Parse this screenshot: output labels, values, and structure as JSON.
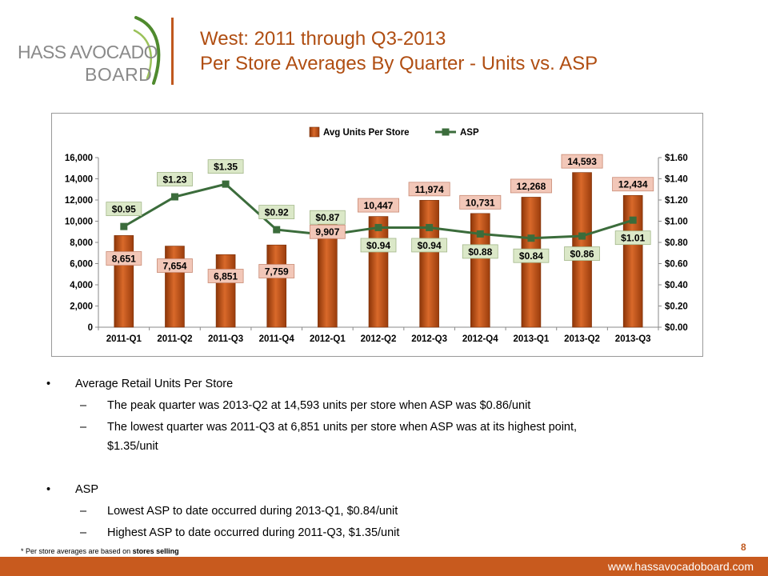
{
  "logo": {
    "line1": "HASS AVOCADO",
    "line2": "BOARD"
  },
  "title": {
    "line1": "West: 2011 through Q3-2013",
    "line2": "Per Store Averages By Quarter - Units vs. ASP"
  },
  "colors": {
    "accent": "#c0581e",
    "bar": "#c85a1e",
    "line": "#3b6c3b",
    "unit_label_bg": "#f2c7b8",
    "asp_label_bg": "#dbe8c8"
  },
  "chart_data": {
    "type": "bar",
    "categories": [
      "2011-Q1",
      "2011-Q2",
      "2011-Q3",
      "2011-Q4",
      "2012-Q1",
      "2012-Q2",
      "2012-Q3",
      "2012-Q4",
      "2013-Q1",
      "2013-Q2",
      "2013-Q3"
    ],
    "series": [
      {
        "name": "Avg Units Per Store",
        "type": "bar",
        "axis": "left",
        "values": [
          8651,
          7654,
          6851,
          7759,
          9907,
          10447,
          11974,
          10731,
          12268,
          14593,
          12434
        ],
        "labels": [
          "8,651",
          "7,654",
          "6,851",
          "7,759",
          "9,907",
          "10,447",
          "11,974",
          "10,731",
          "12,268",
          "14,593",
          "12,434"
        ]
      },
      {
        "name": "ASP",
        "type": "line",
        "axis": "right",
        "values": [
          0.95,
          1.23,
          1.35,
          0.92,
          0.87,
          0.94,
          0.94,
          0.88,
          0.84,
          0.86,
          1.01
        ],
        "labels": [
          "$0.95",
          "$1.23",
          "$1.35",
          "$0.92",
          "$0.87",
          "$0.94",
          "$0.94",
          "$0.88",
          "$0.84",
          "$0.86",
          "$1.01"
        ]
      }
    ],
    "y_left": {
      "min": 0,
      "max": 16000,
      "step": 2000,
      "ticks": [
        "0",
        "2,000",
        "4,000",
        "6,000",
        "8,000",
        "10,000",
        "12,000",
        "14,000",
        "16,000"
      ]
    },
    "y_right": {
      "min": 0,
      "max": 1.6,
      "step": 0.2,
      "ticks": [
        "$0.00",
        "$0.20",
        "$0.40",
        "$0.60",
        "$0.80",
        "$1.00",
        "$1.20",
        "$1.40",
        "$1.60"
      ]
    },
    "grid": false,
    "legend": "top-center",
    "title": "",
    "xlabel": "",
    "ylabel": ""
  },
  "bullets": [
    {
      "level": 1,
      "text": "Average Retail Units Per Store"
    },
    {
      "level": 2,
      "text": "The peak quarter was 2013-Q2 at 14,593 units per store when ASP was $0.86/unit"
    },
    {
      "level": 2,
      "text": "The lowest quarter was 2011-Q3 at 6,851 units per store when ASP was at its highest point,",
      "cont": "$1.35/unit"
    },
    {
      "level": 1,
      "text": "ASP"
    },
    {
      "level": 2,
      "text": "Lowest ASP to date occurred during 2013-Q1, $0.84/unit"
    },
    {
      "level": 2,
      "text": "Highest ASP to date occurred during 2011-Q3, $1.35/unit"
    }
  ],
  "footnote": {
    "prefix": "* Per store averages are based on ",
    "bold": "stores selling"
  },
  "page_number": "8",
  "footer_url": "www.hassavocadoboard.com"
}
